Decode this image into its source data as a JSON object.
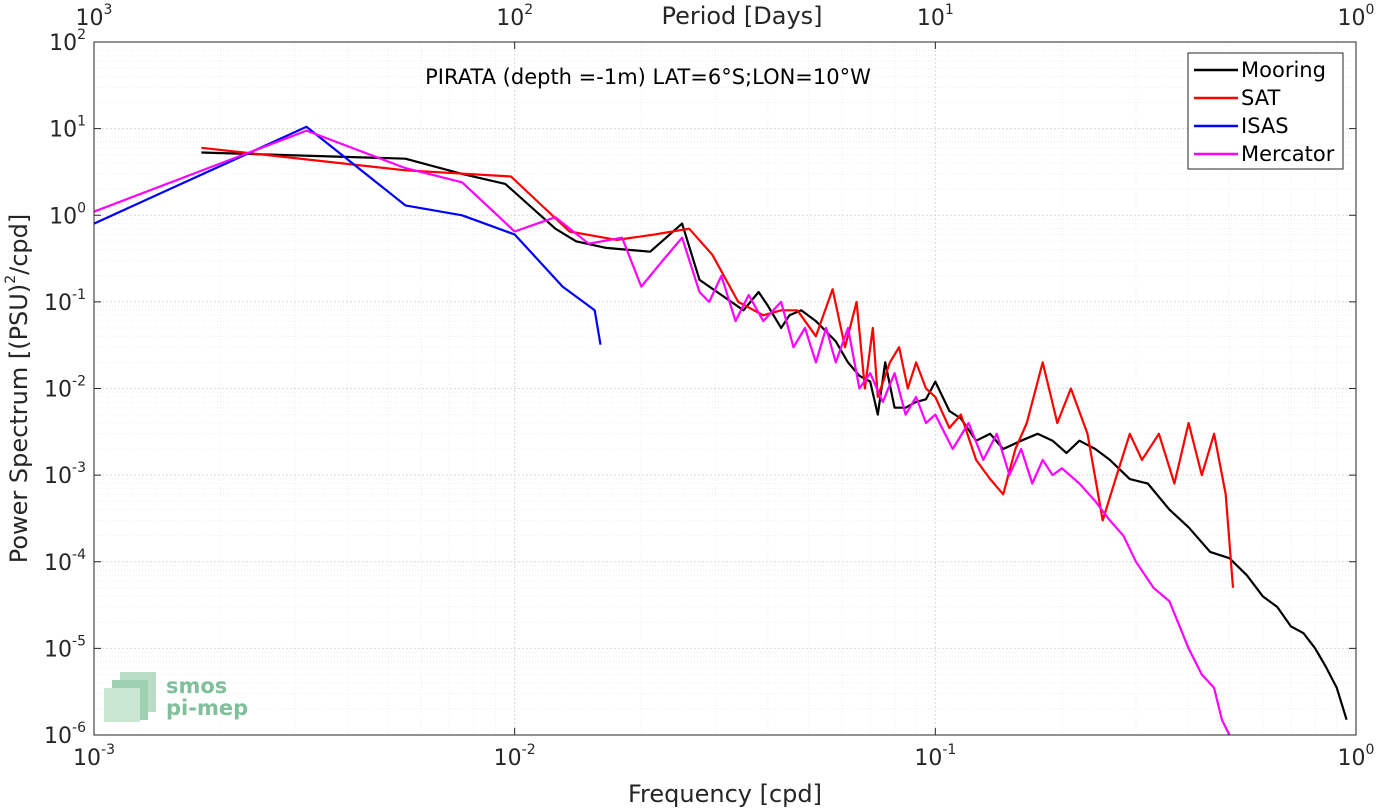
{
  "chart_data": {
    "type": "line",
    "title": "PIRATA (depth =-1m) LAT=6°S;LON=10°W",
    "xlabel": "Frequency [cpd]",
    "ylabel": "Power Spectrum [(PSU)",
    "ylabel_sup": "2",
    "ylabel_tail": "/cpd]",
    "x2label": "Period [Days]",
    "xscale": "log",
    "yscale": "log",
    "xlim": [
      0.001,
      1
    ],
    "ylim": [
      1e-06,
      100
    ],
    "grid": true,
    "legend_position": "top-right",
    "x_ticks": [
      {
        "value": 0.001,
        "base": "10",
        "exp": "-3"
      },
      {
        "value": 0.01,
        "base": "10",
        "exp": "-2"
      },
      {
        "value": 0.1,
        "base": "10",
        "exp": "-1"
      },
      {
        "value": 1,
        "base": "10",
        "exp": "0"
      }
    ],
    "y_ticks": [
      {
        "value": 1e-06,
        "base": "10",
        "exp": "-6"
      },
      {
        "value": 1e-05,
        "base": "10",
        "exp": "-5"
      },
      {
        "value": 0.0001,
        "base": "10",
        "exp": "-4"
      },
      {
        "value": 0.001,
        "base": "10",
        "exp": "-3"
      },
      {
        "value": 0.01,
        "base": "10",
        "exp": "-2"
      },
      {
        "value": 0.1,
        "base": "10",
        "exp": "-1"
      },
      {
        "value": 1,
        "base": "10",
        "exp": "0"
      },
      {
        "value": 10,
        "base": "10",
        "exp": "1"
      },
      {
        "value": 100,
        "base": "10",
        "exp": "2"
      }
    ],
    "top_ticks": [
      {
        "period": 1000,
        "base": "10",
        "exp": "3"
      },
      {
        "period": 100,
        "base": "10",
        "exp": "2"
      },
      {
        "period": 10,
        "base": "10",
        "exp": "1"
      },
      {
        "period": 1,
        "base": "10",
        "exp": "0"
      }
    ],
    "series": [
      {
        "name": "Mooring",
        "color": "#000000",
        "x": [
          0.0018,
          0.0055,
          0.0075,
          0.0095,
          0.0125,
          0.014,
          0.0165,
          0.021,
          0.025,
          0.0275,
          0.031,
          0.035,
          0.038,
          0.04,
          0.043,
          0.045,
          0.048,
          0.052,
          0.058,
          0.062,
          0.066,
          0.07,
          0.073,
          0.076,
          0.08,
          0.085,
          0.09,
          0.095,
          0.1,
          0.108,
          0.115,
          0.125,
          0.135,
          0.145,
          0.16,
          0.175,
          0.19,
          0.205,
          0.22,
          0.24,
          0.26,
          0.29,
          0.32,
          0.36,
          0.4,
          0.45,
          0.5,
          0.55,
          0.6,
          0.65,
          0.7,
          0.75,
          0.8,
          0.85,
          0.9,
          0.95
        ],
        "y": [
          5.3,
          4.5,
          3.0,
          2.3,
          0.7,
          0.5,
          0.42,
          0.38,
          0.8,
          0.18,
          0.12,
          0.08,
          0.13,
          0.09,
          0.05,
          0.07,
          0.08,
          0.06,
          0.035,
          0.02,
          0.014,
          0.012,
          0.005,
          0.02,
          0.006,
          0.006,
          0.007,
          0.0075,
          0.012,
          0.0055,
          0.0045,
          0.0025,
          0.003,
          0.002,
          0.0025,
          0.003,
          0.0025,
          0.0018,
          0.0025,
          0.002,
          0.0015,
          0.0009,
          0.0008,
          0.0004,
          0.00025,
          0.00013,
          0.00011,
          7e-05,
          4e-05,
          3e-05,
          1.8e-05,
          1.5e-05,
          1e-05,
          6e-06,
          3.5e-06,
          1.5e-06
        ]
      },
      {
        "name": "SAT",
        "color": "#ff0000",
        "x": [
          0.0018,
          0.0055,
          0.0098,
          0.0135,
          0.0175,
          0.0215,
          0.026,
          0.0295,
          0.034,
          0.039,
          0.043,
          0.047,
          0.052,
          0.057,
          0.061,
          0.065,
          0.068,
          0.071,
          0.073,
          0.078,
          0.082,
          0.086,
          0.09,
          0.095,
          0.1,
          0.108,
          0.115,
          0.125,
          0.135,
          0.145,
          0.155,
          0.165,
          0.18,
          0.195,
          0.21,
          0.23,
          0.25,
          0.27,
          0.29,
          0.31,
          0.34,
          0.37,
          0.4,
          0.43,
          0.46,
          0.49,
          0.51
        ],
        "y": [
          6.0,
          3.3,
          2.8,
          0.65,
          0.52,
          0.6,
          0.7,
          0.35,
          0.1,
          0.07,
          0.08,
          0.08,
          0.04,
          0.14,
          0.03,
          0.1,
          0.01,
          0.05,
          0.008,
          0.02,
          0.03,
          0.01,
          0.02,
          0.01,
          0.008,
          0.0035,
          0.005,
          0.0015,
          0.0009,
          0.0006,
          0.002,
          0.004,
          0.02,
          0.004,
          0.01,
          0.003,
          0.0003,
          0.001,
          0.003,
          0.0015,
          0.003,
          0.0008,
          0.004,
          0.001,
          0.003,
          0.0006,
          5e-05
        ]
      },
      {
        "name": "ISAS",
        "color": "#0000ff",
        "x": [
          0.001,
          0.0032,
          0.0055,
          0.0075,
          0.01,
          0.013,
          0.0155,
          0.016
        ],
        "y": [
          0.8,
          10.5,
          1.3,
          1.0,
          0.6,
          0.15,
          0.08,
          0.032
        ]
      },
      {
        "name": "Mercator",
        "color": "#ff00ff",
        "x": [
          0.001,
          0.0032,
          0.0055,
          0.0075,
          0.01,
          0.0125,
          0.015,
          0.018,
          0.02,
          0.0225,
          0.025,
          0.0275,
          0.029,
          0.031,
          0.0335,
          0.036,
          0.039,
          0.043,
          0.046,
          0.049,
          0.052,
          0.055,
          0.058,
          0.062,
          0.066,
          0.07,
          0.075,
          0.08,
          0.085,
          0.09,
          0.095,
          0.1,
          0.11,
          0.12,
          0.13,
          0.14,
          0.15,
          0.16,
          0.17,
          0.18,
          0.19,
          0.2,
          0.22,
          0.24,
          0.26,
          0.28,
          0.3,
          0.33,
          0.36,
          0.4,
          0.43,
          0.46,
          0.48,
          0.5
        ],
        "y": [
          1.1,
          9.5,
          3.5,
          2.4,
          0.65,
          0.95,
          0.47,
          0.55,
          0.15,
          0.3,
          0.55,
          0.13,
          0.1,
          0.2,
          0.06,
          0.12,
          0.06,
          0.1,
          0.03,
          0.05,
          0.02,
          0.05,
          0.02,
          0.05,
          0.01,
          0.015,
          0.007,
          0.015,
          0.005,
          0.008,
          0.004,
          0.005,
          0.002,
          0.004,
          0.0015,
          0.003,
          0.001,
          0.002,
          0.0008,
          0.0015,
          0.001,
          0.0012,
          0.0008,
          0.0005,
          0.0003,
          0.0002,
          0.0001,
          5e-05,
          3.5e-05,
          1e-05,
          5e-06,
          3.5e-06,
          1.5e-06,
          1e-06
        ]
      }
    ]
  },
  "logo": {
    "line1": "smos",
    "line2": "pi-mep"
  }
}
